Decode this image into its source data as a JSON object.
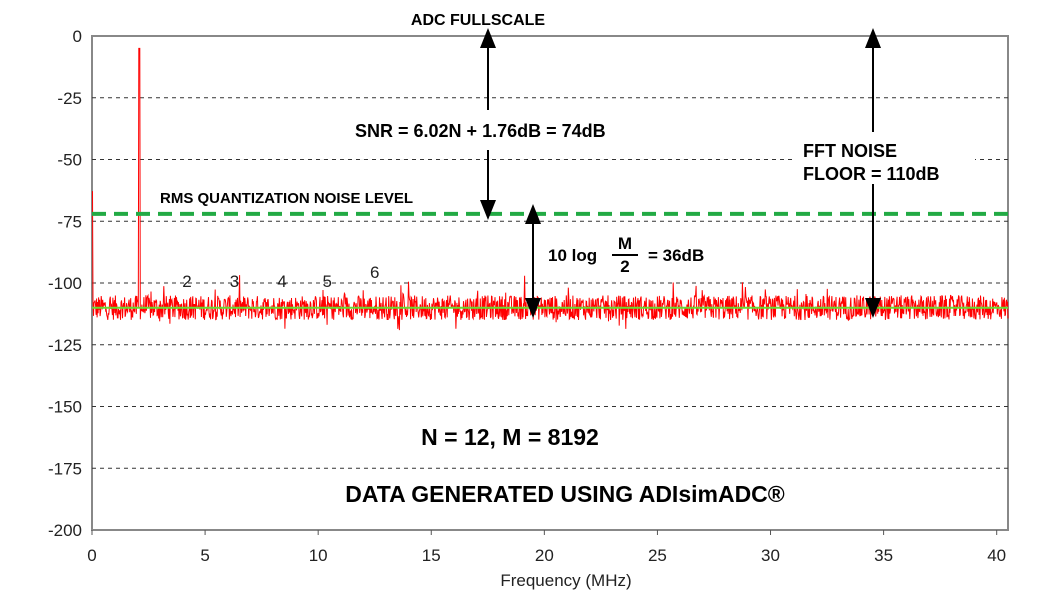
{
  "chart_data": {
    "type": "line",
    "title": "",
    "xlabel": "Frequency (MHz)",
    "ylabel": "",
    "xlim": [
      0,
      40.5
    ],
    "ylim": [
      -200,
      0
    ],
    "xticks": [
      "0",
      "5",
      "10",
      "15",
      "20",
      "25",
      "30",
      "35",
      "40"
    ],
    "yticks": [
      "0",
      "-25",
      "-50",
      "-75",
      "-100",
      "-125",
      "-150",
      "-175",
      "-200"
    ],
    "grid": "horizontal dashed",
    "series": [
      {
        "kind": "fft-spectrum",
        "color": "#ff0000",
        "noise_floor_db": -110,
        "peaks": [
          {
            "freq_mhz": 0,
            "db": -63
          },
          {
            "freq_mhz": 2.1,
            "db": -5
          }
        ]
      }
    ],
    "reference_lines": [
      {
        "label": "RMS QUANTIZATION NOISE LEVEL",
        "db": -72,
        "color": "#22aa44",
        "style": "dashed"
      },
      {
        "db": -110,
        "color": "#66dd33",
        "style": "solid"
      }
    ],
    "harmonics": [
      {
        "label": "2",
        "freq_mhz": 4.2
      },
      {
        "label": "3",
        "freq_mhz": 6.3
      },
      {
        "label": "4",
        "freq_mhz": 8.4
      },
      {
        "label": "5",
        "freq_mhz": 10.4
      },
      {
        "label": "6",
        "freq_mhz": 12.5
      }
    ],
    "annotations": {
      "adc_fullscale": "ADC FULLSCALE",
      "snr": "SNR = 6.02N + 1.76dB = 74dB",
      "fft_noise_1": "FFT NOISE",
      "fft_noise_2": "FLOOR = 110dB",
      "gain_prefix": "10 log",
      "gain_num": "M",
      "gain_den": "2",
      "gain_suffix": "= 36dB",
      "params": "N = 12, M = 8192",
      "credit": "DATA GENERATED USING ADIsimADC®"
    }
  }
}
